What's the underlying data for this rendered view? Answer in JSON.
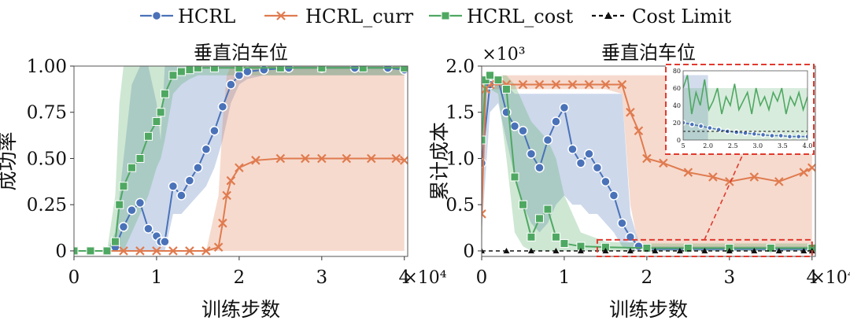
{
  "legend": {
    "entries": [
      {
        "label": "HCRL",
        "color": "#4a72b8",
        "marker": "circle",
        "dash": "solid"
      },
      {
        "label": "HCRL_curr",
        "color": "#e07b4f",
        "marker": "x",
        "dash": "solid"
      },
      {
        "label": "HCRL_cost",
        "color": "#4fa862",
        "marker": "square",
        "dash": "solid"
      },
      {
        "label": "Cost Limit",
        "color": "#111111",
        "marker": "triangle",
        "dash": "dashed"
      }
    ]
  },
  "chart_data": [
    {
      "type": "line",
      "title": "垂直泊车位",
      "xlabel": "训练步数",
      "ylabel": "成功率",
      "x_multiplier_label": "×10⁴",
      "xlim": [
        0,
        4.0
      ],
      "ylim": [
        -0.03,
        1.0
      ],
      "xticks": [
        0,
        1,
        2,
        3,
        4
      ],
      "xtick_labels": [
        "0",
        "1",
        "2",
        "3",
        "4"
      ],
      "yticks": [
        0,
        0.25,
        0.5,
        0.75,
        1.0
      ],
      "ytick_labels": [
        "0",
        "0.25",
        "0.50",
        "0.75",
        "1.00"
      ],
      "grid": false,
      "series": [
        {
          "name": "HCRL",
          "color": "#4a72b8",
          "x": [
            0,
            0.2,
            0.4,
            0.5,
            0.6,
            0.7,
            0.8,
            0.9,
            1.0,
            1.05,
            1.1,
            1.2,
            1.3,
            1.4,
            1.5,
            1.6,
            1.7,
            1.8,
            1.9,
            2.0,
            2.1,
            2.3,
            2.6,
            3.0,
            3.4,
            3.8,
            4.0
          ],
          "y": [
            0,
            0,
            0,
            0.02,
            0.13,
            0.22,
            0.26,
            0.12,
            0.08,
            0.05,
            0.05,
            0.35,
            0.3,
            0.38,
            0.45,
            0.55,
            0.65,
            0.78,
            0.9,
            0.95,
            0.97,
            0.98,
            0.99,
            0.99,
            0.99,
            0.99,
            0.98
          ],
          "band_low": [
            0,
            0,
            0,
            0,
            0,
            0,
            0,
            0,
            0,
            0,
            0,
            0.2,
            0.2,
            0.25,
            0.3,
            0.35,
            0.45,
            0.6,
            0.8,
            0.9,
            0.93,
            0.95,
            0.95,
            0.95,
            0.95,
            0.95,
            0.95
          ],
          "band_high": [
            0,
            0,
            0,
            0.1,
            0.5,
            0.9,
            1.0,
            1.0,
            0.8,
            0.6,
            1.0,
            1.0,
            1.0,
            1.0,
            1.0,
            1.0,
            1.0,
            1.0,
            1.0,
            1.0,
            1.0,
            1.0,
            1.0,
            1.0,
            1.0,
            1.0,
            1.0
          ]
        },
        {
          "name": "HCRL_curr",
          "color": "#e07b4f",
          "x": [
            0,
            0.2,
            0.4,
            0.6,
            0.8,
            1.0,
            1.2,
            1.4,
            1.6,
            1.75,
            1.8,
            1.85,
            1.9,
            2.0,
            2.2,
            2.5,
            2.8,
            3.0,
            3.3,
            3.6,
            3.9,
            4.0
          ],
          "y": [
            0,
            0,
            0,
            0,
            0,
            0,
            0,
            0,
            0,
            0.02,
            0.15,
            0.3,
            0.38,
            0.45,
            0.49,
            0.5,
            0.5,
            0.5,
            0.5,
            0.5,
            0.5,
            0.49
          ],
          "band_low": [
            0,
            0,
            0,
            0,
            0,
            0,
            0,
            0,
            0,
            0,
            0,
            0,
            0,
            0,
            0,
            0,
            0,
            0,
            0,
            0,
            0,
            0
          ],
          "band_high": [
            0,
            0,
            0,
            0,
            0,
            0,
            0,
            0,
            0,
            0.3,
            0.7,
            0.95,
            1.0,
            1.0,
            1.0,
            1.0,
            1.0,
            1.0,
            1.0,
            1.0,
            1.0,
            1.0
          ]
        },
        {
          "name": "HCRL_cost",
          "color": "#4fa862",
          "x": [
            0,
            0.2,
            0.4,
            0.5,
            0.55,
            0.6,
            0.7,
            0.8,
            0.9,
            1.0,
            1.05,
            1.1,
            1.2,
            1.3,
            1.4,
            1.5,
            1.7,
            2.0,
            2.5,
            3.0,
            3.5,
            4.0
          ],
          "y": [
            0,
            0,
            0,
            0.05,
            0.25,
            0.35,
            0.45,
            0.5,
            0.62,
            0.7,
            0.75,
            0.85,
            0.95,
            0.97,
            0.98,
            0.99,
            0.99,
            0.99,
            0.99,
            0.99,
            0.99,
            0.99
          ],
          "band_low": [
            0,
            0,
            0,
            0,
            0,
            0,
            0.1,
            0.2,
            0.3,
            0.45,
            0.5,
            0.6,
            0.85,
            0.9,
            0.93,
            0.95,
            0.95,
            0.95,
            0.95,
            0.95,
            0.95,
            0.95
          ],
          "band_high": [
            0,
            0,
            0,
            0.3,
            0.8,
            1.0,
            1.0,
            1.0,
            1.0,
            1.0,
            1.0,
            1.0,
            1.0,
            1.0,
            1.0,
            1.0,
            1.0,
            1.0,
            1.0,
            1.0,
            1.0,
            1.0
          ]
        }
      ]
    },
    {
      "type": "line",
      "title": "垂直泊车位",
      "xlabel": "训练步数",
      "ylabel": "累计成本",
      "y_multiplier_label": "×10³",
      "x_multiplier_label": "×10⁴",
      "xlim": [
        0,
        4.0
      ],
      "ylim": [
        -0.06,
        2.0
      ],
      "xticks": [
        0,
        1,
        2,
        3,
        4
      ],
      "xtick_labels": [
        "0",
        "1",
        "2",
        "3",
        "4"
      ],
      "yticks": [
        0,
        0.5,
        1.0,
        1.5,
        2.0
      ],
      "ytick_labels": [
        "0",
        "0.5",
        "1.0",
        "1.5",
        "2.0"
      ],
      "grid": false,
      "series": [
        {
          "name": "HCRL",
          "color": "#4a72b8",
          "x": [
            0,
            0.1,
            0.2,
            0.3,
            0.4,
            0.5,
            0.6,
            0.7,
            0.8,
            0.9,
            1.0,
            1.1,
            1.2,
            1.3,
            1.4,
            1.5,
            1.6,
            1.7,
            1.8,
            1.9,
            2.0,
            2.5,
            3.0,
            3.5,
            4.0
          ],
          "y": [
            0.95,
            1.8,
            1.85,
            1.5,
            1.35,
            1.3,
            1.05,
            0.9,
            1.2,
            1.4,
            1.55,
            1.1,
            0.95,
            1.05,
            0.9,
            0.75,
            0.6,
            0.3,
            0.15,
            0.05,
            0.02,
            0.02,
            0.02,
            0.02,
            0.02
          ],
          "band_low": [
            0.2,
            1.5,
            1.6,
            1.2,
            0.8,
            0.5,
            0.3,
            0.2,
            0.3,
            0.5,
            0.6,
            0.5,
            0.5,
            0.4,
            0.4,
            0.3,
            0.2,
            0.05,
            0,
            0,
            0,
            0,
            0,
            0,
            0
          ],
          "band_high": [
            1.7,
            1.9,
            1.9,
            1.8,
            1.7,
            1.7,
            1.7,
            1.7,
            1.7,
            1.7,
            1.7,
            1.7,
            1.7,
            1.7,
            1.7,
            1.7,
            1.7,
            1.7,
            0.4,
            0.1,
            0.05,
            0.05,
            0.05,
            0.05,
            0.05
          ]
        },
        {
          "name": "HCRL_curr",
          "color": "#e07b4f",
          "x": [
            0,
            0.05,
            0.1,
            0.3,
            0.5,
            0.7,
            0.9,
            1.1,
            1.3,
            1.5,
            1.7,
            1.8,
            1.9,
            2.0,
            2.2,
            2.5,
            2.8,
            3.0,
            3.3,
            3.6,
            3.9,
            4.0
          ],
          "y": [
            0.4,
            1.75,
            1.8,
            1.8,
            1.8,
            1.8,
            1.8,
            1.8,
            1.8,
            1.8,
            1.8,
            1.5,
            1.3,
            1.0,
            0.95,
            0.85,
            0.8,
            0.75,
            0.8,
            0.75,
            0.85,
            0.9
          ],
          "band_low": [
            0,
            1.7,
            1.75,
            1.75,
            1.75,
            1.75,
            1.75,
            1.75,
            1.75,
            1.75,
            1.7,
            0.5,
            0.05,
            0.02,
            0.02,
            0.02,
            0.02,
            0.02,
            0.02,
            0.02,
            0.02,
            0.02
          ],
          "band_high": [
            1.9,
            1.9,
            1.9,
            1.9,
            1.9,
            1.9,
            1.9,
            1.9,
            1.9,
            1.9,
            1.9,
            1.9,
            1.9,
            1.9,
            1.9,
            1.9,
            1.9,
            1.9,
            1.9,
            1.9,
            1.9,
            1.9
          ]
        },
        {
          "name": "HCRL_cost",
          "color": "#4fa862",
          "x": [
            0,
            0.05,
            0.1,
            0.2,
            0.3,
            0.4,
            0.5,
            0.6,
            0.7,
            0.8,
            0.9,
            1.0,
            1.2,
            1.5,
            2.0,
            2.5,
            3.0,
            3.5,
            4.0
          ],
          "y": [
            1.2,
            1.85,
            1.9,
            1.85,
            1.75,
            0.8,
            0.5,
            0.15,
            0.35,
            0.45,
            0.15,
            0.08,
            0.05,
            0.04,
            0.03,
            0.03,
            0.03,
            0.03,
            0.03
          ],
          "band_low": [
            0.5,
            1.7,
            1.75,
            1.7,
            1.0,
            0.2,
            0.05,
            0,
            0,
            0,
            0,
            0,
            0,
            0,
            0,
            0,
            0,
            0,
            0
          ],
          "band_high": [
            1.9,
            1.9,
            1.9,
            1.9,
            1.9,
            1.8,
            1.6,
            1.4,
            1.3,
            1.2,
            1.0,
            0.6,
            0.2,
            0.1,
            0.08,
            0.08,
            0.08,
            0.08,
            0.08
          ]
        },
        {
          "name": "Cost Limit",
          "color": "#111111",
          "dashed": true,
          "x": [
            0,
            0.3,
            0.6,
            0.9,
            1.2,
            1.5,
            1.8,
            2.1,
            2.4,
            2.7,
            3.0,
            3.3,
            3.6,
            3.9,
            4.0
          ],
          "y": [
            0,
            0,
            0,
            0,
            0,
            0,
            0,
            0,
            0,
            0,
            0,
            0,
            0,
            0,
            0
          ]
        }
      ],
      "inset": {
        "xlim": [
          1.5,
          4.0
        ],
        "ylim": [
          0,
          80
        ],
        "xtick_labels": [
          "5",
          "2.0",
          "2.5",
          "3.0",
          "3.5",
          "4.0"
        ],
        "ytick_labels": [
          "0",
          "20",
          "40",
          "60",
          "80"
        ],
        "zoom_region": {
          "x": [
            1.4,
            4.0
          ],
          "y": [
            -0.06,
            0.12
          ]
        }
      }
    }
  ]
}
